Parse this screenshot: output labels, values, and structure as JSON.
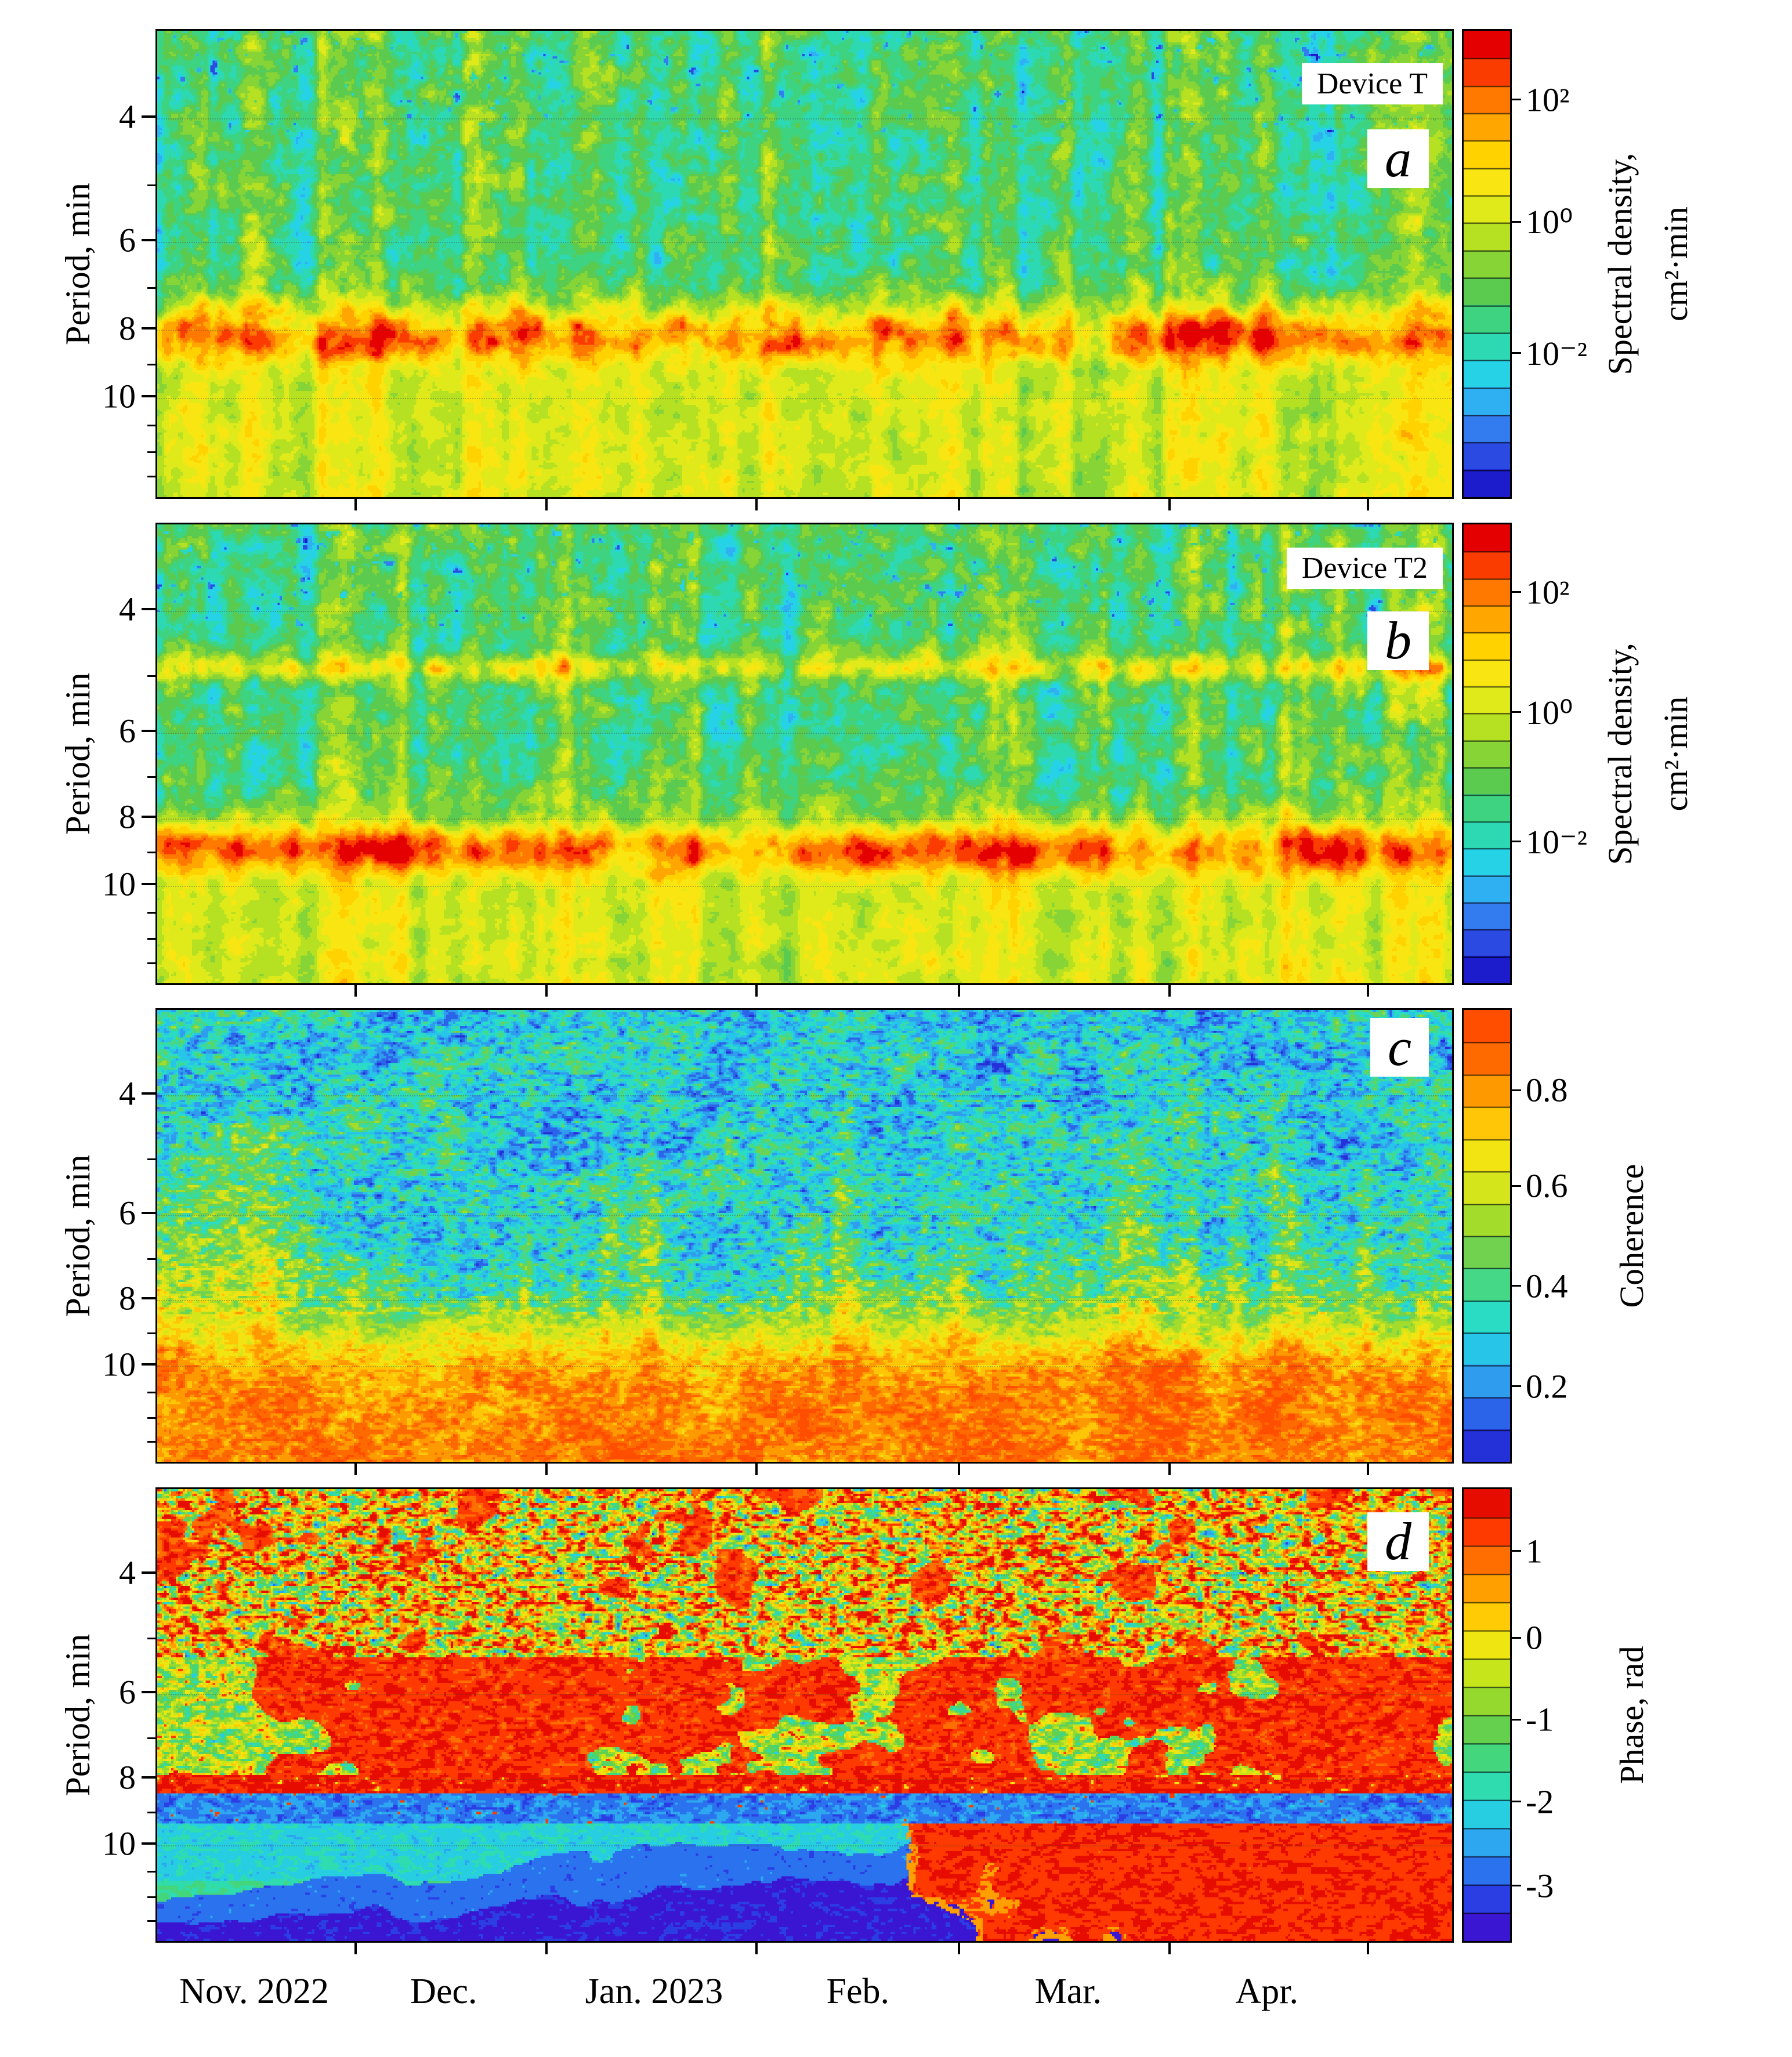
{
  "figure": {
    "x_axis": {
      "month_labels": [
        "Nov. 2022",
        "Dec.",
        "Jan. 2023",
        "Feb.",
        "Mar.",
        "Apr."
      ]
    },
    "panels": [
      {
        "letter": "a",
        "device_label": "Device T",
        "y_axis_label": "Period, min",
        "y_ticks": [
          4,
          6,
          8,
          10
        ],
        "colorbar": {
          "title_lines": [
            "Spectral density,",
            "cm²·min"
          ],
          "tick_labels": [
            "10²",
            "10⁰",
            "10⁻²"
          ]
        }
      },
      {
        "letter": "b",
        "device_label": "Device T2",
        "y_axis_label": "Period, min",
        "y_ticks": [
          4,
          6,
          8,
          10
        ],
        "colorbar": {
          "title_lines": [
            "Spectral density,",
            "cm²·min"
          ],
          "tick_labels": [
            "10²",
            "10⁰",
            "10⁻²"
          ]
        }
      },
      {
        "letter": "c",
        "y_axis_label": "Period, min",
        "y_ticks": [
          4,
          6,
          8,
          10
        ],
        "colorbar": {
          "title_lines": [
            "Coherence"
          ],
          "tick_labels": [
            "0.8",
            "0.6",
            "0.4",
            "0.2"
          ]
        }
      },
      {
        "letter": "d",
        "y_axis_label": "Period, min",
        "y_ticks": [
          4,
          6,
          8,
          10
        ],
        "colorbar": {
          "title_lines": [
            "Phase, rad"
          ],
          "tick_labels": [
            "1",
            "0",
            "-1",
            "-2",
            "-3"
          ]
        }
      }
    ]
  },
  "chart_data": [
    {
      "type": "heatmap",
      "panel": "a",
      "title": "Device T",
      "x": {
        "label": "",
        "tick_labels": [
          "Nov. 2022",
          "Dec.",
          "Jan. 2023",
          "Feb.",
          "Mar.",
          "Apr."
        ],
        "range": [
          "Nov 2022",
          "Apr 2023"
        ]
      },
      "y": {
        "label": "Period, min",
        "scale": "log",
        "range": [
          3,
          13
        ],
        "ticks": [
          4,
          6,
          8,
          10
        ]
      },
      "z": {
        "label": "Spectral density, cm²·min",
        "scale": "log",
        "colorbar_ticks": [
          "10²",
          "10⁰",
          "10⁻²"
        ]
      },
      "palette": "blue-cyan-green-yellow-orange-red",
      "features": [
        "green/cyan background at periods 3-7 min with vertical blue and yellow-green streaks",
        "persistent orange-red high-power band near 8 min period across all months",
        "yellow background with orange patches and vertical orange streaks at periods above 9 min"
      ]
    },
    {
      "type": "heatmap",
      "panel": "b",
      "title": "Device T2",
      "x": {
        "label": "",
        "tick_labels": [
          "Nov. 2022",
          "Dec.",
          "Jan. 2023",
          "Feb.",
          "Mar.",
          "Apr."
        ],
        "range": [
          "Nov 2022",
          "Apr 2023"
        ]
      },
      "y": {
        "label": "Period, min",
        "scale": "log",
        "range": [
          3,
          13
        ],
        "ticks": [
          4,
          6,
          8,
          10
        ]
      },
      "z": {
        "label": "Spectral density, cm²·min",
        "scale": "log",
        "colorbar_ticks": [
          "10²",
          "10⁰",
          "10⁻²"
        ]
      },
      "palette": "blue-cyan-green-yellow-orange-red",
      "features": [
        "green/cyan background at periods 3-8 min with vertical streaks",
        "narrow yellow-orange horizontal band near 5 min period",
        "main orange-red high-power band near 9 min period",
        "yellow background with orange patches at longer periods"
      ]
    },
    {
      "type": "heatmap",
      "panel": "c",
      "title": "Coherence between Device T and Device T2",
      "x": {
        "label": "",
        "tick_labels": [
          "Nov. 2022",
          "Dec.",
          "Jan. 2023",
          "Feb.",
          "Mar.",
          "Apr."
        ],
        "range": [
          "Nov 2022",
          "Apr 2023"
        ]
      },
      "y": {
        "label": "Period, min",
        "scale": "log",
        "range": [
          3,
          13
        ],
        "ticks": [
          4,
          6,
          8,
          10
        ]
      },
      "z": {
        "label": "Coherence",
        "range": [
          0,
          1
        ],
        "colorbar_ticks": [
          0.8,
          0.6,
          0.4,
          0.2
        ]
      },
      "palette": "blue-cyan-green-yellow-orange",
      "features": [
        "low coherence (blue/cyan fine speckle) at periods 3-8 min",
        "high coherence (orange-red) at periods above ~9 min for all months",
        "vertical high-coherence streaks, strongest in November and during discrete events"
      ]
    },
    {
      "type": "heatmap",
      "panel": "d",
      "title": "Phase between Device T and Device T2",
      "x": {
        "label": "",
        "tick_labels": [
          "Nov. 2022",
          "Dec.",
          "Jan. 2023",
          "Feb.",
          "Mar.",
          "Apr."
        ],
        "range": [
          "Nov 2022",
          "Apr 2023"
        ]
      },
      "y": {
        "label": "Period, min",
        "scale": "log",
        "range": [
          3,
          13
        ],
        "ticks": [
          4,
          6,
          8,
          10
        ]
      },
      "z": {
        "label": "Phase, rad",
        "range": [
          -3.3,
          1.6
        ],
        "colorbar_ticks": [
          1,
          0,
          -1,
          -2,
          -3
        ]
      },
      "palette": "blue-cyan-green-yellow-orange-red",
      "features": [
        "random multicolor phase speckle at short periods (3-5 min)",
        "red in-phase patches at 5-8 min, strongest Dec-Jan and Mar-Apr",
        "thin red band near 8 min directly above a blue band near 9 min",
        "long-period region: cyan (about -2 rad) Nov-Dec, deep blue (about -3 rad) Dec-Feb, red (about +1 rad) Feb-Apr"
      ]
    }
  ]
}
